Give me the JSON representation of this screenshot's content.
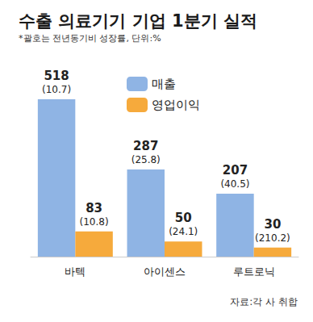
{
  "chart_data": {
    "type": "bar",
    "title": "수출 의료기기 기업 1분기 실적",
    "subtitle": "*괄호는 전년동기비 성장률, 단위:%",
    "source": "자료:각 사 취합",
    "categories": [
      "바텍",
      "아이센스",
      "루트로닉"
    ],
    "series": [
      {
        "name": "매출",
        "color": "#8fb4e4",
        "values": [
          518,
          287,
          207
        ],
        "growth_labels": [
          "(10.7)",
          "(25.8)",
          "(40.5)"
        ]
      },
      {
        "name": "영업이익",
        "color": "#f6aa3c",
        "values": [
          83,
          50,
          30
        ],
        "growth_labels": [
          "(10.8)",
          "(24.1)",
          "(210.2)"
        ]
      }
    ],
    "ylim": [
      0,
      600
    ],
    "yticks": [
      0,
      600
    ],
    "grid": false,
    "legend": "top",
    "data_labels": true,
    "tick_labels": "x"
  }
}
